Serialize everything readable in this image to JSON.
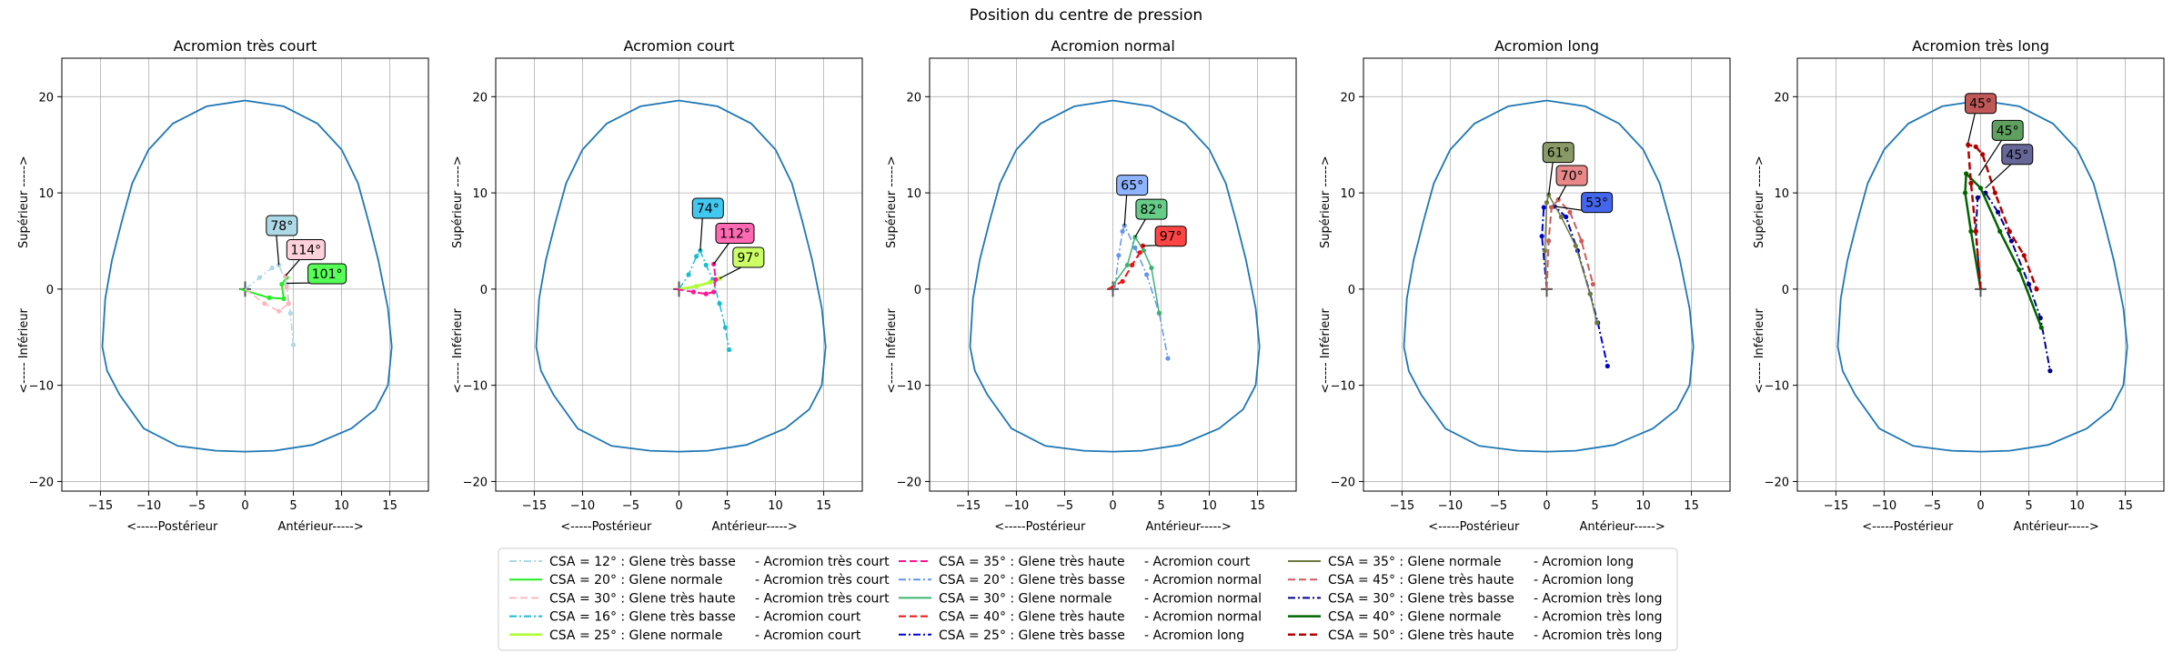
{
  "suptitle": "Position du centre de pression",
  "colors": {
    "outline": "#1f77b4",
    "grid": "#b0b0b0"
  },
  "chart_data": [
    {
      "type": "line",
      "title": "Acromion très court",
      "xlabel": "<-----Postérieur                Antérieur----->",
      "ylabel": "<----- Inférieur                Supérieur ----->",
      "xlim": [
        -19,
        19
      ],
      "ylim": [
        -21,
        24
      ],
      "xticks": [
        -15,
        -10,
        -5,
        0,
        5,
        10,
        15
      ],
      "yticks": [
        -20,
        -10,
        0,
        10,
        20
      ],
      "grid": true,
      "series": [
        {
          "name": "CSA = 12° : Glene très basse   -  Acromion très court",
          "color": "#add8e6",
          "dash": "8 3 2 3",
          "width": 1.5,
          "points": [
            [
              0,
              0
            ],
            [
              1.5,
              1.2
            ],
            [
              2.8,
              2.2
            ],
            [
              3.5,
              2.5
            ],
            [
              4.3,
              0.5
            ],
            [
              4.7,
              -2.5
            ],
            [
              5,
              -5.8
            ]
          ],
          "label": "78°",
          "label_bg": "#add8e6",
          "label_pos": [
            3.8,
            6.6
          ],
          "label_anchor": [
            3.5,
            2.5
          ]
        },
        {
          "name": "CSA = 20° : Glene normale   -  Acromion très court",
          "color": "#22ee22",
          "dash": "",
          "width": 2,
          "points": [
            [
              -0.5,
              0
            ],
            [
              2.5,
              -0.9
            ],
            [
              4,
              -1
            ],
            [
              3.8,
              0.5
            ],
            [
              4.3,
              1.2
            ]
          ],
          "label": "101°",
          "label_bg": "#55ff55",
          "label_pos": [
            8.5,
            1.6
          ],
          "label_anchor": [
            4.3,
            0.6
          ]
        },
        {
          "name": "CSA = 30° : Glene très haute   -  Acromion très court",
          "color": "#ffb6c1",
          "dash": "8 4",
          "width": 1.5,
          "points": [
            [
              0,
              0
            ],
            [
              2,
              -1.5
            ],
            [
              3.5,
              -2.3
            ],
            [
              4.5,
              -1.5
            ],
            [
              4.3,
              0.2
            ],
            [
              4.2,
              1.4
            ]
          ],
          "label": "114°",
          "label_bg": "#ffd1dc",
          "label_pos": [
            6.3,
            4.1
          ],
          "label_anchor": [
            4.2,
            1.4
          ]
        }
      ]
    },
    {
      "type": "line",
      "title": "Acromion court",
      "xlabel": "<-----Postérieur                Antérieur----->",
      "ylabel": "<----- Inférieur                Supérieur ----->",
      "xlim": [
        -19,
        19
      ],
      "ylim": [
        -21,
        24
      ],
      "xticks": [
        -15,
        -10,
        -5,
        0,
        5,
        10,
        15
      ],
      "yticks": [
        -20,
        -10,
        0,
        10,
        20
      ],
      "grid": true,
      "series": [
        {
          "name": "CSA = 16° : Glene très basse   -  Acromion court",
          "color": "#17becf",
          "dash": "8 3 2 3",
          "width": 1.5,
          "points": [
            [
              0,
              0
            ],
            [
              1,
              1.5
            ],
            [
              1.8,
              3.4
            ],
            [
              2.2,
              4
            ],
            [
              2.8,
              2.5
            ],
            [
              3.5,
              1
            ],
            [
              4.2,
              -1.5
            ],
            [
              4.8,
              -4
            ],
            [
              5.2,
              -6.3
            ]
          ],
          "label": "74°",
          "label_bg": "#40c8f0",
          "label_pos": [
            3,
            8.4
          ],
          "label_anchor": [
            2.2,
            4
          ]
        },
        {
          "name": "CSA = 25° : Glene normale   -  Acromion court",
          "color": "#adff2f",
          "dash": "",
          "width": 2.5,
          "points": [
            [
              0,
              0
            ],
            [
              1.8,
              0.3
            ],
            [
              3.2,
              0.7
            ],
            [
              4.2,
              1.1
            ]
          ],
          "label": "97°",
          "label_bg": "#ccff66",
          "label_pos": [
            7.2,
            3.3
          ],
          "label_anchor": [
            4.2,
            1.1
          ]
        },
        {
          "name": "CSA = 35° : Glene très haute   -  Acromion court",
          "color": "#ff1493",
          "dash": "8 4",
          "width": 2,
          "points": [
            [
              -0.3,
              0
            ],
            [
              1.5,
              -0.3
            ],
            [
              2.8,
              -0.5
            ],
            [
              3.6,
              -0.3
            ],
            [
              3.8,
              1
            ],
            [
              3.6,
              2.6
            ]
          ],
          "label": "112°",
          "label_bg": "#ff69b4",
          "label_pos": [
            5.8,
            5.8
          ],
          "label_anchor": [
            3.6,
            2.6
          ]
        }
      ]
    },
    {
      "type": "line",
      "title": "Acromion normal",
      "xlabel": "<-----Postérieur                Antérieur----->",
      "ylabel": "<----- Inférieur                Supérieur ----->",
      "xlim": [
        -19,
        19
      ],
      "ylim": [
        -21,
        24
      ],
      "xticks": [
        -15,
        -10,
        -5,
        0,
        5,
        10,
        15
      ],
      "yticks": [
        -20,
        -10,
        0,
        10,
        20
      ],
      "grid": true,
      "series": [
        {
          "name": "CSA = 20° : Glene très basse   -  Acromion normal",
          "color": "#6495ed",
          "dash": "8 3 2 3",
          "width": 1.5,
          "points": [
            [
              0.2,
              0
            ],
            [
              0.6,
              3.5
            ],
            [
              1,
              6
            ],
            [
              1.2,
              6.6
            ],
            [
              2.3,
              4.3
            ],
            [
              3.5,
              1.5
            ],
            [
              4.8,
              -2.5
            ],
            [
              5.7,
              -7.2
            ]
          ],
          "label": "65°",
          "label_bg": "#8fb4ff",
          "label_pos": [
            2,
            10.8
          ],
          "label_anchor": [
            1.2,
            6.6
          ]
        },
        {
          "name": "CSA = 30° : Glene normale   -  Acromion normal",
          "color": "#3cb371",
          "dash": "",
          "width": 1.5,
          "points": [
            [
              -0.3,
              0
            ],
            [
              1.5,
              2.5
            ],
            [
              2.3,
              5.4
            ],
            [
              3.2,
              4
            ],
            [
              4,
              2.2
            ],
            [
              4.8,
              -2.5
            ]
          ],
          "label": "82°",
          "label_bg": "#66cc88",
          "label_pos": [
            4,
            8.3
          ],
          "label_anchor": [
            2.3,
            5.4
          ]
        },
        {
          "name": "CSA = 40° : Glene très haute   -  Acromion normal",
          "color": "#ee1111",
          "dash": "8 4",
          "width": 2,
          "points": [
            [
              -0.5,
              0
            ],
            [
              1,
              0.8
            ],
            [
              2,
              2.5
            ],
            [
              2.8,
              3.8
            ],
            [
              3.1,
              4.5
            ]
          ],
          "label": "97°",
          "label_bg": "#ff4444",
          "label_pos": [
            6,
            5.5
          ],
          "label_anchor": [
            3.1,
            4.5
          ]
        }
      ]
    },
    {
      "type": "line",
      "title": "Acromion long",
      "xlabel": "<-----Postérieur                Antérieur----->",
      "ylabel": "<----- Inférieur                Supérieur ----->",
      "xlim": [
        -19,
        19
      ],
      "ylim": [
        -21,
        24
      ],
      "xticks": [
        -15,
        -10,
        -5,
        0,
        5,
        10,
        15
      ],
      "yticks": [
        -20,
        -10,
        0,
        10,
        20
      ],
      "grid": true,
      "series": [
        {
          "name": "CSA = 25° : Glene très basse   -  Acromion long",
          "color": "#0000cd",
          "dash": "8 3 2 3",
          "width": 2,
          "points": [
            [
              0,
              0
            ],
            [
              -0.5,
              5.5
            ],
            [
              -0.3,
              8.5
            ],
            [
              0.8,
              8.6
            ],
            [
              2,
              7.5
            ],
            [
              3.2,
              4
            ],
            [
              4.5,
              -0.5
            ],
            [
              5.3,
              -3.5
            ],
            [
              6.3,
              -8
            ]
          ],
          "label": "53°",
          "label_bg": "#4466ee",
          "label_pos": [
            5.2,
            9
          ],
          "label_anchor": [
            0.8,
            8.6
          ]
        },
        {
          "name": "CSA = 35° : Glene normale   -  Acromion long",
          "color": "#6b7a3f",
          "dash": "",
          "width": 1.5,
          "points": [
            [
              0,
              0
            ],
            [
              -0.2,
              4
            ],
            [
              0,
              9
            ],
            [
              0.2,
              9.8
            ],
            [
              1.5,
              7.5
            ],
            [
              3,
              4.5
            ],
            [
              4.5,
              -0.5
            ],
            [
              5.2,
              -3.5
            ]
          ],
          "label": "61°",
          "label_bg": "#8a9a66",
          "label_pos": [
            1.2,
            14.2
          ],
          "label_anchor": [
            0.2,
            9.8
          ]
        },
        {
          "name": "CSA = 45° : Glene très haute   -  Acromion long",
          "color": "#cd5c5c",
          "dash": "8 4",
          "width": 2,
          "points": [
            [
              0,
              0
            ],
            [
              0.2,
              5
            ],
            [
              0.5,
              8.5
            ],
            [
              1.2,
              9.3
            ],
            [
              2.4,
              8
            ],
            [
              3.6,
              5
            ],
            [
              4.8,
              0.5
            ]
          ],
          "label": "70°",
          "label_bg": "#e88888",
          "label_pos": [
            2.6,
            11.8
          ],
          "label_anchor": [
            1.2,
            9.3
          ]
        }
      ]
    },
    {
      "type": "line",
      "title": "Acromion très long",
      "xlabel": "<-----Postérieur                Antérieur----->",
      "ylabel": "<----- Inférieur                Supérieur ----->",
      "xlim": [
        -19,
        19
      ],
      "ylim": [
        -21,
        24
      ],
      "xticks": [
        -15,
        -10,
        -5,
        0,
        5,
        10,
        15
      ],
      "yticks": [
        -20,
        -10,
        0,
        10,
        20
      ],
      "grid": true,
      "series": [
        {
          "name": "CSA = 30° : Glene très basse   -  Acromion très long",
          "color": "#00008b",
          "dash": "8 3 2 3",
          "width": 2,
          "points": [
            [
              0,
              0
            ],
            [
              -0.5,
              6
            ],
            [
              -0.3,
              9.5
            ],
            [
              0.5,
              10
            ],
            [
              1.8,
              8
            ],
            [
              3.2,
              5
            ],
            [
              5,
              0.5
            ],
            [
              6.2,
              -3
            ],
            [
              7.2,
              -8.5
            ]
          ],
          "label": "45°",
          "label_bg": "#666699",
          "label_pos": [
            3.8,
            14
          ],
          "label_anchor": [
            0.5,
            10.5
          ]
        },
        {
          "name": "CSA = 40° : Glene normale   -  Acromion très long",
          "color": "#006400",
          "dash": "",
          "width": 2.5,
          "points": [
            [
              0,
              0
            ],
            [
              -1,
              6
            ],
            [
              -1.6,
              10
            ],
            [
              -1.5,
              12
            ],
            [
              0,
              10.5
            ],
            [
              2,
              6
            ],
            [
              4,
              2
            ],
            [
              6.3,
              -4
            ]
          ],
          "label": "45°",
          "label_bg": "#5f9f5f",
          "label_pos": [
            2.8,
            16.5
          ],
          "label_anchor": [
            -0.2,
            11.8
          ]
        },
        {
          "name": "CSA = 50° : Glene très haute   -  Acromion très long",
          "color": "#b00000",
          "dash": "8 4",
          "width": 2.5,
          "points": [
            [
              0,
              0
            ],
            [
              -0.5,
              6
            ],
            [
              -1,
              11
            ],
            [
              -1.3,
              15
            ],
            [
              -0.5,
              14.8
            ],
            [
              0.2,
              14
            ],
            [
              1.5,
              10
            ],
            [
              3,
              6
            ],
            [
              4.5,
              3.5
            ],
            [
              5.8,
              0
            ]
          ],
          "label": "45°",
          "label_bg": "#c05858",
          "label_pos": [
            0,
            19.3
          ],
          "label_anchor": [
            -1.3,
            15.2
          ]
        }
      ]
    }
  ]
}
